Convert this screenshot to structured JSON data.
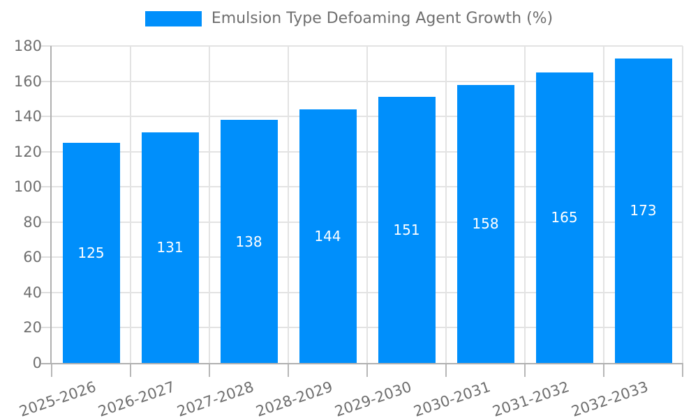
{
  "colors": {
    "bar": "#008FFB",
    "grid_line": "#e3e3e3",
    "axis_line": "#b0b0b0",
    "tick_mark_y": "#dedede",
    "tick_mark_x": "#b7b7b7",
    "tick_label": "#6f6f6f",
    "legend_text": "#6f6f6f",
    "bar_label": "#ffffff",
    "background": "#ffffff"
  },
  "legend": {
    "position": "top",
    "label": "Emulsion Type Defoaming Agent Growth (%)"
  },
  "chart_data": {
    "type": "bar",
    "title": "Emulsion Type Defoaming Agent Growth (%)",
    "categories": [
      "2025-2026",
      "2026-2027",
      "2027-2028",
      "2028-2029",
      "2029-2030",
      "2030-2031",
      "2031-2032",
      "2032-2033"
    ],
    "values": [
      125,
      131,
      138,
      144,
      151,
      158,
      165,
      173
    ],
    "xlabel": "",
    "ylabel": "",
    "ylim": [
      0,
      180
    ],
    "yticks": [
      0,
      20,
      40,
      60,
      80,
      100,
      120,
      140,
      160,
      180
    ],
    "grid": true,
    "legend_position": "top",
    "bar_labels_inside": true,
    "x_label_rotation_deg": -19
  }
}
